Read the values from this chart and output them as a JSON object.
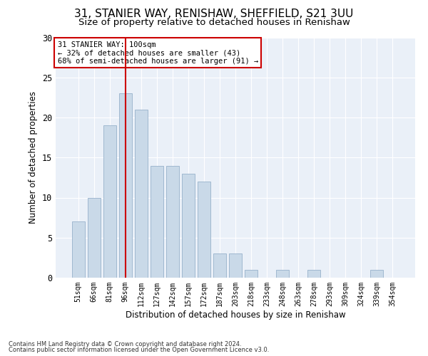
{
  "title1": "31, STANIER WAY, RENISHAW, SHEFFIELD, S21 3UU",
  "title2": "Size of property relative to detached houses in Renishaw",
  "xlabel": "Distribution of detached houses by size in Renishaw",
  "ylabel": "Number of detached properties",
  "categories": [
    "51sqm",
    "66sqm",
    "81sqm",
    "96sqm",
    "112sqm",
    "127sqm",
    "142sqm",
    "157sqm",
    "172sqm",
    "187sqm",
    "203sqm",
    "218sqm",
    "233sqm",
    "248sqm",
    "263sqm",
    "278sqm",
    "293sqm",
    "309sqm",
    "324sqm",
    "339sqm",
    "354sqm"
  ],
  "values": [
    7,
    10,
    19,
    23,
    21,
    14,
    14,
    13,
    12,
    3,
    3,
    1,
    0,
    1,
    0,
    1,
    0,
    0,
    0,
    1,
    0
  ],
  "bar_color": "#c9d9e8",
  "bar_edge_color": "#a0b8d0",
  "vline_x": 3,
  "vline_color": "#cc0000",
  "annotation_line1": "31 STANIER WAY: 100sqm",
  "annotation_line2": "← 32% of detached houses are smaller (43)",
  "annotation_line3": "68% of semi-detached houses are larger (91) →",
  "annotation_box_color": "#ffffff",
  "annotation_box_edge": "#cc0000",
  "ylim": [
    0,
    30
  ],
  "yticks": [
    0,
    5,
    10,
    15,
    20,
    25,
    30
  ],
  "footer1": "Contains HM Land Registry data © Crown copyright and database right 2024.",
  "footer2": "Contains public sector information licensed under the Open Government Licence v3.0.",
  "bg_color": "#ffffff",
  "plot_bg_color": "#eaf0f8",
  "grid_color": "#ffffff",
  "title1_fontsize": 11,
  "title2_fontsize": 9.5
}
